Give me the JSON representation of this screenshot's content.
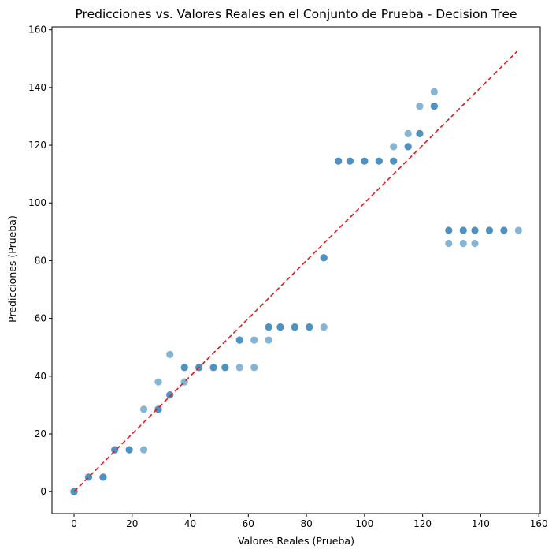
{
  "chart_data": {
    "type": "scatter",
    "title": "Predicciones vs. Valores Reales en el Conjunto de Prueba - Decision Tree",
    "xlabel": "Valores Reales (Prueba)",
    "ylabel": "Predicciones (Prueba)",
    "xlim": [
      -7.6,
      160.5
    ],
    "ylim": [
      -7.6,
      161
    ],
    "xticks": [
      0,
      20,
      40,
      60,
      80,
      100,
      120,
      140,
      160
    ],
    "yticks": [
      0,
      20,
      40,
      60,
      80,
      100,
      120,
      140,
      160
    ],
    "grid": false,
    "point_color": "#1f77b4",
    "point_alpha": 0.55,
    "reference_line": {
      "x": [
        0,
        152.5
      ],
      "y": [
        0,
        152.5
      ],
      "color": "#e31a1c",
      "style": "dashed"
    },
    "points": [
      [
        0,
        0
      ],
      [
        0,
        0
      ],
      [
        5,
        5
      ],
      [
        5,
        5
      ],
      [
        10,
        5
      ],
      [
        10,
        5
      ],
      [
        14,
        14.5
      ],
      [
        14,
        14.5
      ],
      [
        19,
        14.5
      ],
      [
        19,
        14.5
      ],
      [
        24,
        14.5
      ],
      [
        24,
        28.5
      ],
      [
        29,
        28.5
      ],
      [
        29,
        28.5
      ],
      [
        29,
        38
      ],
      [
        33,
        33.5
      ],
      [
        33,
        33.5
      ],
      [
        33,
        47.5
      ],
      [
        38,
        38
      ],
      [
        38,
        43
      ],
      [
        38,
        43
      ],
      [
        43,
        43
      ],
      [
        43,
        43
      ],
      [
        48,
        43
      ],
      [
        48,
        43
      ],
      [
        52,
        43
      ],
      [
        52,
        43
      ],
      [
        57,
        43
      ],
      [
        62,
        43
      ],
      [
        57,
        52.5
      ],
      [
        57,
        52.5
      ],
      [
        62,
        52.5
      ],
      [
        67,
        52.5
      ],
      [
        67,
        57
      ],
      [
        67,
        57
      ],
      [
        71,
        57
      ],
      [
        71,
        57
      ],
      [
        76,
        57
      ],
      [
        76,
        57
      ],
      [
        81,
        57
      ],
      [
        81,
        57
      ],
      [
        86,
        57
      ],
      [
        86,
        81
      ],
      [
        86,
        81
      ],
      [
        91,
        114.5
      ],
      [
        91,
        114.5
      ],
      [
        95,
        114.5
      ],
      [
        95,
        114.5
      ],
      [
        100,
        114.5
      ],
      [
        100,
        114.5
      ],
      [
        105,
        114.5
      ],
      [
        105,
        114.5
      ],
      [
        110,
        114.5
      ],
      [
        110,
        114.5
      ],
      [
        110,
        119.5
      ],
      [
        115,
        119.5
      ],
      [
        115,
        119.5
      ],
      [
        115,
        124
      ],
      [
        119,
        124
      ],
      [
        119,
        124
      ],
      [
        119,
        133.5
      ],
      [
        124,
        133.5
      ],
      [
        124,
        133.5
      ],
      [
        124,
        138.5
      ],
      [
        129,
        90.5
      ],
      [
        129,
        90.5
      ],
      [
        134,
        90.5
      ],
      [
        134,
        90.5
      ],
      [
        138,
        90.5
      ],
      [
        138,
        90.5
      ],
      [
        143,
        90.5
      ],
      [
        143,
        90.5
      ],
      [
        148,
        90.5
      ],
      [
        148,
        90.5
      ],
      [
        153,
        90.5
      ],
      [
        129,
        86
      ],
      [
        134,
        86
      ],
      [
        138,
        86
      ]
    ]
  }
}
